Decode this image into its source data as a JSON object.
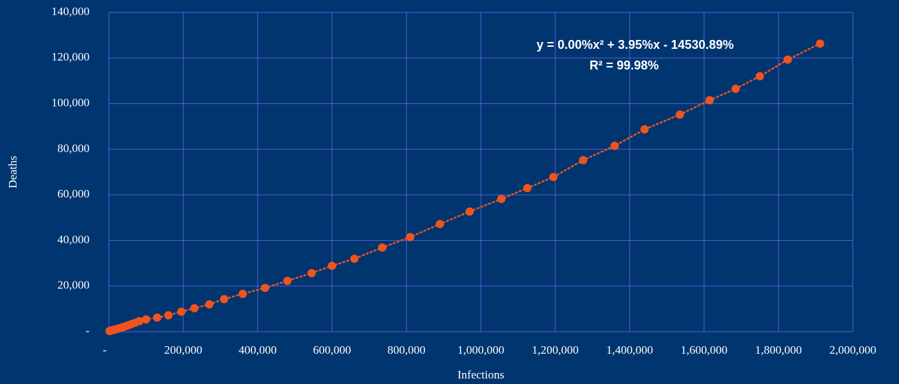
{
  "chart_data": {
    "type": "scatter",
    "x_label": "Infections",
    "y_label": "Deaths",
    "annotations": [
      "y = 0.00%x² + 3.95%x - 14530.89%",
      "R² = 99.98%"
    ],
    "grid": true,
    "trendline": true,
    "series": [
      {
        "color": "#f0541e",
        "x": [
          2000,
          5000,
          10000,
          15000,
          20000,
          25000,
          30000,
          38000,
          45000,
          52000,
          60000,
          70000,
          82000,
          100000,
          130000,
          160000,
          195000,
          230000,
          270000,
          310000,
          360000,
          420000,
          480000,
          545000,
          600000,
          660000,
          735000,
          810000,
          890000,
          970000,
          1055000,
          1125000,
          1195000,
          1275000,
          1360000,
          1440000,
          1535000,
          1615000,
          1685000,
          1750000,
          1825000,
          1912000
        ],
        "values": [
          300,
          500,
          700,
          900,
          1100,
          1400,
          1600,
          2000,
          2400,
          2800,
          3300,
          3900,
          4600,
          5400,
          6200,
          7200,
          8800,
          10300,
          12000,
          14300,
          16600,
          19200,
          22300,
          25700,
          28900,
          32000,
          36900,
          41500,
          47200,
          52700,
          58200,
          63000,
          67800,
          75200,
          81500,
          88700,
          95200,
          101500,
          106500,
          112000,
          119300,
          126300
        ]
      }
    ],
    "xlim": [
      0,
      2000000
    ],
    "xticks": [
      {
        "value": 0,
        "label": "-"
      },
      {
        "value": 200000,
        "label": "200,000"
      },
      {
        "value": 400000,
        "label": "400,000"
      },
      {
        "value": 600000,
        "label": "600,000"
      },
      {
        "value": 800000,
        "label": "800,000"
      },
      {
        "value": 1000000,
        "label": "1,000,000"
      },
      {
        "value": 1200000,
        "label": "1,200,000"
      },
      {
        "value": 1400000,
        "label": "1,400,000"
      },
      {
        "value": 1600000,
        "label": "1,600,000"
      },
      {
        "value": 1800000,
        "label": "1,800,000"
      },
      {
        "value": 2000000,
        "label": "2,000,000"
      }
    ],
    "ylim": [
      0,
      140000
    ],
    "yticks": [
      {
        "value": 0,
        "label": "-"
      },
      {
        "value": 20000,
        "label": "20,000"
      },
      {
        "value": 40000,
        "label": "40,000"
      },
      {
        "value": 60000,
        "label": "60,000"
      },
      {
        "value": 80000,
        "label": "80,000"
      },
      {
        "value": 100000,
        "label": "100,000"
      },
      {
        "value": 120000,
        "label": "120,000"
      },
      {
        "value": 140000,
        "label": "140,000"
      }
    ]
  }
}
